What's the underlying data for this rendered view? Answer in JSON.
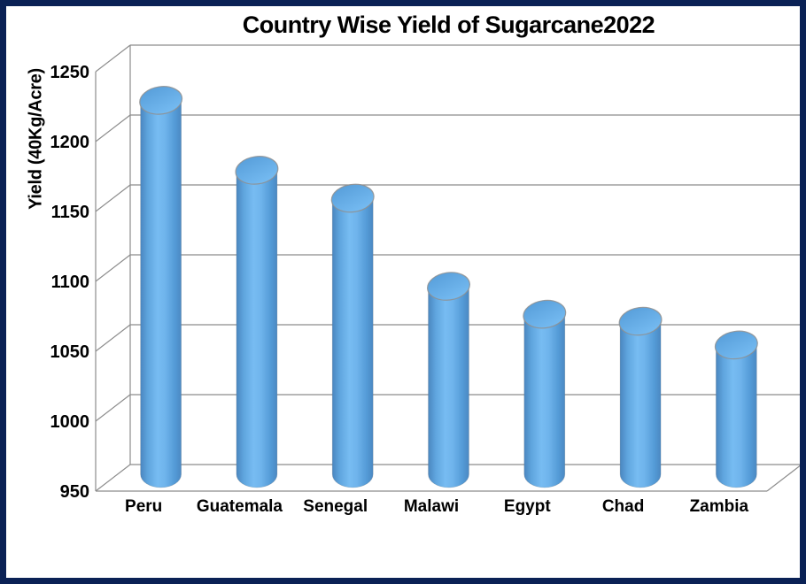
{
  "frame": {
    "border_color": "#0A2155",
    "background_color": "#ffffff"
  },
  "chart_data": {
    "type": "bar",
    "style": "3d-cylinder",
    "title": "Country Wise Yield of Sugarcane2022",
    "xlabel": "",
    "ylabel": "Yield (40Kg/Acre)",
    "categories": [
      "Peru",
      "Guatemala",
      "Senegal",
      "Malawi",
      "Egypt",
      "Chad",
      "Zambia"
    ],
    "values": [
      1220,
      1170,
      1150,
      1087,
      1067,
      1062,
      1045
    ],
    "ylim": [
      950,
      1250
    ],
    "ytick_step": 50,
    "ytick_labels": [
      "950",
      "1000",
      "1050",
      "1100",
      "1150",
      "1200",
      "1250"
    ],
    "grid": true,
    "legend": false,
    "colors": {
      "bar_body_left": "#4A86BF",
      "bar_body_mid": "#77BCF2",
      "bar_body_right": "#4B88C2",
      "bar_top_dark": "#559CD8",
      "bar_top_light": "#73B9F0",
      "gridline": "#8C8C8C",
      "wall_edge": "#8C8C8C",
      "text": "#000000",
      "plot_background": "#ffffff"
    }
  }
}
